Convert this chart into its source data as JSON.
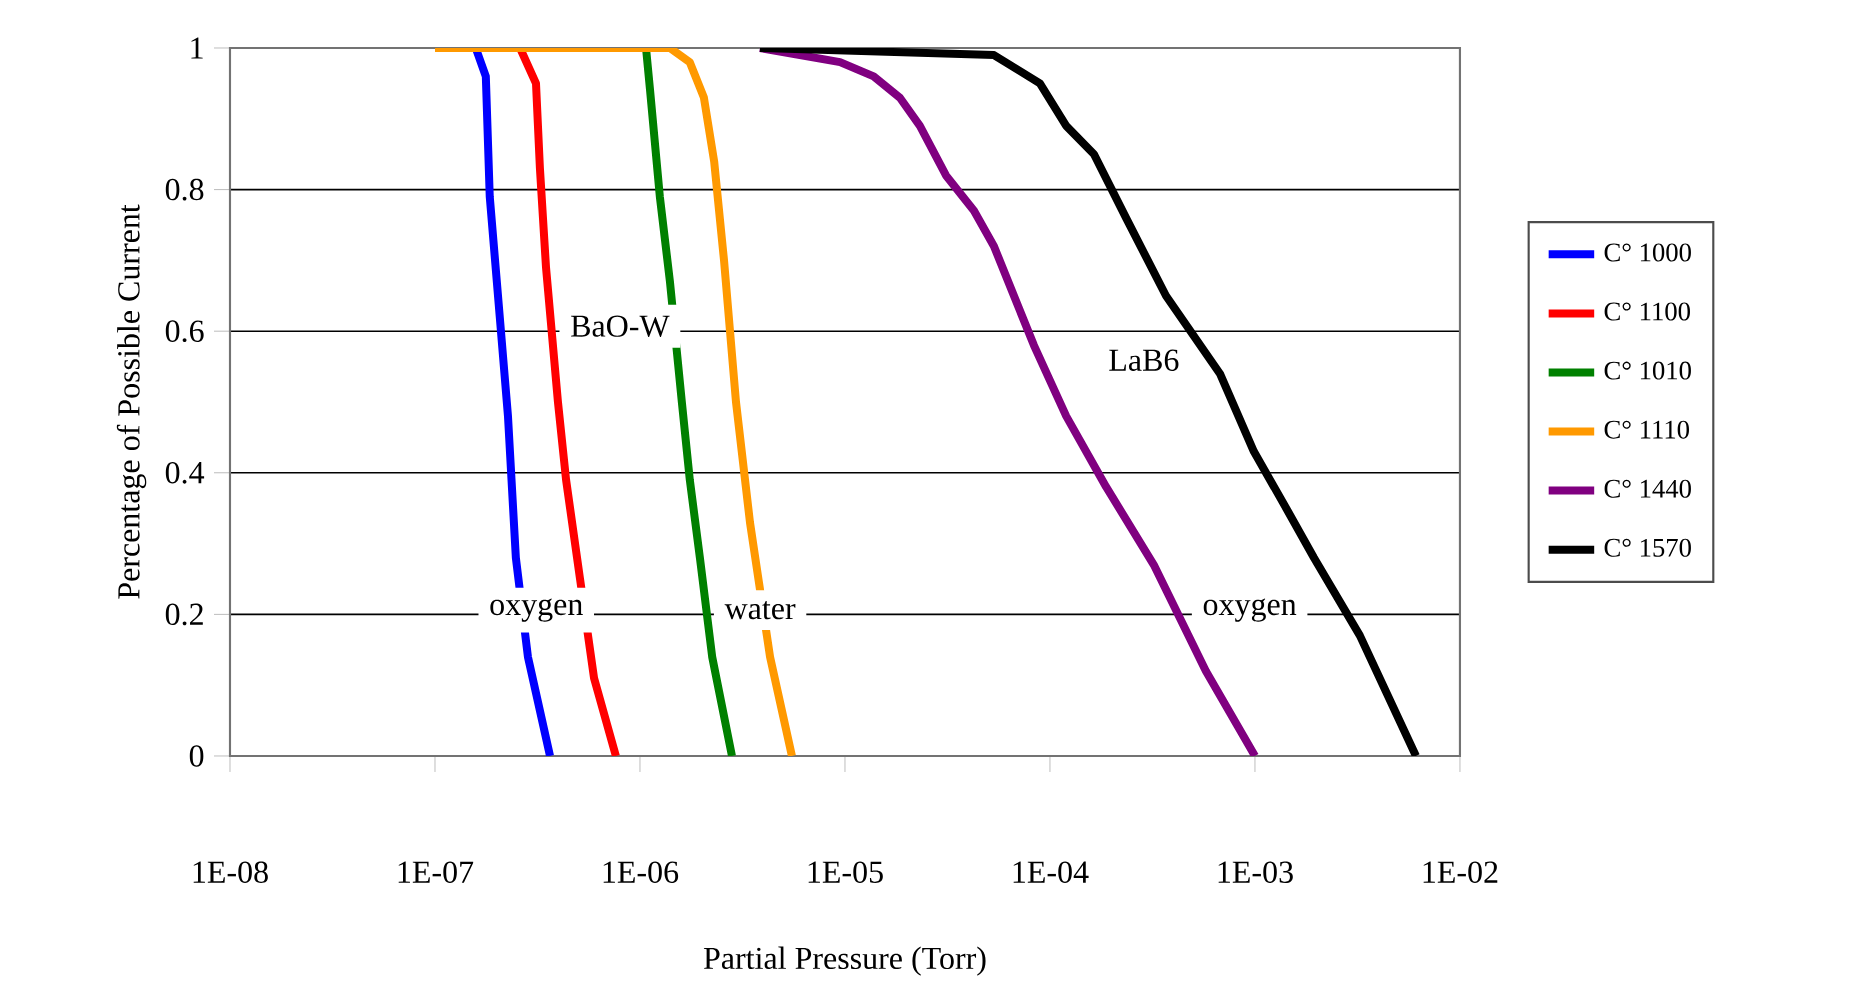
{
  "chart_data": {
    "type": "line",
    "xlabel": "Partial Pressure (Torr)",
    "ylabel": "Percentage of Possible Current",
    "log": "x",
    "grid": "y",
    "legend": "right",
    "marker": "none",
    "line_style": "solid",
    "xlim": [
      1e-08,
      0.01
    ],
    "xticks": [
      {
        "value": 1e-08,
        "label": "1E-08"
      },
      {
        "value": 1e-07,
        "label": "1E-07"
      },
      {
        "value": 1e-06,
        "label": "1E-06"
      },
      {
        "value": 1e-05,
        "label": "1E-05"
      },
      {
        "value": 0.0001,
        "label": "1E-04"
      },
      {
        "value": 0.001,
        "label": "1E-03"
      },
      {
        "value": 0.01,
        "label": "1E-02"
      }
    ],
    "ylim": [
      0,
      1
    ],
    "yticks": [
      0,
      0.2,
      0.4,
      0.6,
      0.8,
      1
    ],
    "series": [
      {
        "name": "C° 1000",
        "color": "#0000ff",
        "x": [
          1.58e-07,
          1.77e-07,
          1.85e-07,
          2.07e-07,
          2.27e-07,
          2.48e-07,
          2.84e-07,
          3.64e-07
        ],
        "values": [
          1,
          0.96,
          0.79,
          0.62,
          0.48,
          0.28,
          0.14,
          0
        ]
      },
      {
        "name": "C° 1100",
        "color": "#ff0000",
        "x": [
          2.6e-07,
          3.11e-07,
          3.25e-07,
          3.48e-07,
          3.98e-07,
          4.36e-07,
          5.1e-07,
          5.97e-07,
          7.63e-07
        ],
        "values": [
          1,
          0.95,
          0.83,
          0.69,
          0.5,
          0.39,
          0.25,
          0.11,
          0
        ]
      },
      {
        "name": "C° 1010",
        "color": "#008000",
        "x": [
          1.07e-06,
          1.12e-06,
          1.25e-06,
          1.4e-06,
          1.6e-06,
          1.75e-06,
          1.96e-06,
          2.25e-06,
          2.81e-06
        ],
        "values": [
          1,
          0.94,
          0.79,
          0.67,
          0.5,
          0.39,
          0.28,
          0.14,
          0
        ]
      },
      {
        "name": "C° 1110",
        "color": "#ff9900",
        "x": [
          1e-07,
          1.4e-06,
          1.75e-06,
          2.05e-06,
          2.3e-06,
          2.57e-06,
          2.94e-06,
          3.44e-06,
          4.31e-06,
          5.51e-06
        ],
        "values": [
          1,
          1,
          0.98,
          0.93,
          0.84,
          0.7,
          0.5,
          0.33,
          0.14,
          0
        ]
      },
      {
        "name": "C° 1440",
        "color": "#800080",
        "x": [
          3.85e-06,
          9.46e-06,
          1.38e-05,
          1.85e-05,
          2.32e-05,
          3.11e-05,
          4.26e-05,
          5.33e-05,
          6.67e-05,
          8.35e-05,
          0.00012,
          0.000188,
          0.000321,
          0.000576,
          0.001
        ],
        "values": [
          1,
          0.98,
          0.96,
          0.93,
          0.89,
          0.82,
          0.77,
          0.72,
          0.65,
          0.58,
          0.48,
          0.38,
          0.27,
          0.12,
          0
        ]
      },
      {
        "name": "C° 1570",
        "color": "#000000",
        "x": [
          3.85e-06,
          5.33e-05,
          8.93e-05,
          0.00012,
          0.000164,
          0.000235,
          0.000368,
          0.000675,
          0.000988,
          0.00142,
          0.00194,
          0.00325,
          0.0061
        ],
        "values": [
          1,
          0.99,
          0.95,
          0.89,
          0.85,
          0.76,
          0.65,
          0.54,
          0.43,
          0.35,
          0.28,
          0.17,
          0
        ]
      }
    ],
    "annotations": [
      "BaO-W",
      "LaB6",
      "oxygen",
      "water",
      "oxygen"
    ]
  }
}
